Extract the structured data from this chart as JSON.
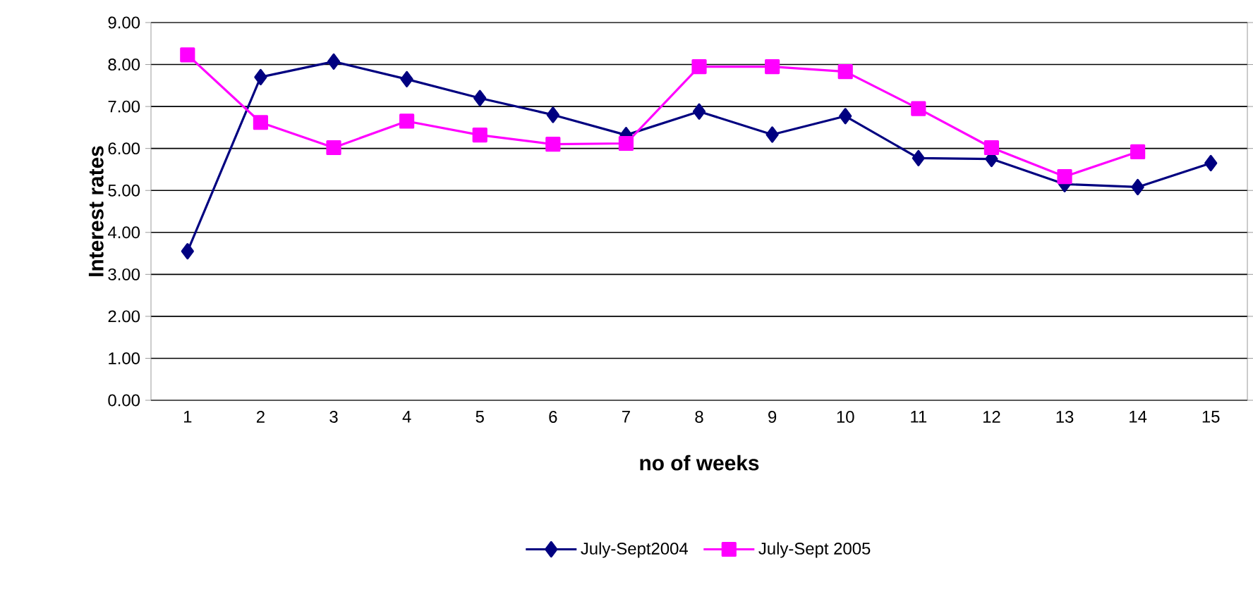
{
  "chart_data": {
    "type": "line",
    "xlabel": "no of weeks",
    "ylabel": "Interest rates",
    "categories": [
      "1",
      "2",
      "3",
      "4",
      "5",
      "6",
      "7",
      "8",
      "9",
      "10",
      "11",
      "12",
      "13",
      "14",
      "15"
    ],
    "series": [
      {
        "name": "July-Sept2004",
        "color": "#000080",
        "marker": "diamond",
        "values": [
          3.55,
          7.7,
          8.07,
          7.65,
          7.2,
          6.8,
          6.32,
          6.88,
          6.33,
          6.77,
          5.77,
          5.75,
          5.15,
          5.08,
          5.65
        ]
      },
      {
        "name": "July-Sept 2005",
        "color": "#ff00ff",
        "marker": "square",
        "values": [
          8.23,
          6.62,
          6.02,
          6.65,
          6.32,
          6.1,
          6.12,
          7.95,
          7.95,
          7.83,
          6.95,
          6.02,
          5.33,
          5.92,
          null
        ]
      }
    ],
    "ylim": [
      0,
      9
    ],
    "yticks": [
      {
        "value": 0,
        "label": "0.00"
      },
      {
        "value": 1,
        "label": "1.00"
      },
      {
        "value": 2,
        "label": "2.00"
      },
      {
        "value": 3,
        "label": "3.00"
      },
      {
        "value": 4,
        "label": "4.00"
      },
      {
        "value": 5,
        "label": "5.00"
      },
      {
        "value": 6,
        "label": "6.00"
      },
      {
        "value": 7,
        "label": "7.00"
      },
      {
        "value": 8,
        "label": "8.00"
      },
      {
        "value": 9,
        "label": "9.00"
      }
    ],
    "grid": "y",
    "legend": "bottom",
    "line_style": "solid"
  }
}
